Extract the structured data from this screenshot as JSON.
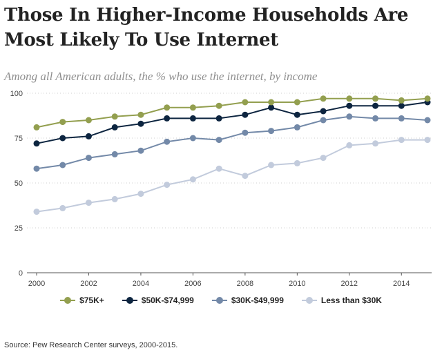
{
  "title": "Those In Higher-Income Households Are Most Likely To Use Internet",
  "subtitle": "Among all American adults, the % who use the internet, by income",
  "source": "Source: Pew Research Center surveys, 2000-2015.",
  "chart_data": {
    "type": "line",
    "x": [
      2000,
      2001,
      2002,
      2003,
      2004,
      2005,
      2006,
      2007,
      2008,
      2009,
      2010,
      2011,
      2012,
      2013,
      2014,
      2015
    ],
    "xlim": [
      2000,
      2015
    ],
    "ylim": [
      0,
      100
    ],
    "xticks": [
      "2000",
      "2002",
      "2004",
      "2006",
      "2008",
      "2010",
      "2012",
      "2014"
    ],
    "yticks": [
      "0",
      "25",
      "50",
      "75",
      "100"
    ],
    "grid": "horizontal dotted",
    "legend_position": "bottom",
    "series": [
      {
        "name": "$75K+",
        "color": "#939f4f",
        "values": [
          81,
          84,
          85,
          87,
          88,
          92,
          92,
          93,
          95,
          95,
          95,
          97,
          97,
          97,
          96,
          97
        ]
      },
      {
        "name": "$50K-$74,999",
        "color": "#0d2540",
        "values": [
          72,
          75,
          76,
          81,
          83,
          86,
          86,
          86,
          88,
          92,
          88,
          90,
          93,
          93,
          93,
          95
        ]
      },
      {
        "name": "$30K-$49,999",
        "color": "#7389a8",
        "values": [
          58,
          60,
          64,
          66,
          68,
          73,
          75,
          74,
          78,
          79,
          81,
          85,
          87,
          86,
          86,
          85
        ]
      },
      {
        "name": "Less than $30K",
        "color": "#c2cbdc",
        "values": [
          34,
          36,
          39,
          41,
          44,
          49,
          52,
          58,
          54,
          60,
          61,
          64,
          71,
          72,
          74,
          74
        ]
      }
    ]
  }
}
